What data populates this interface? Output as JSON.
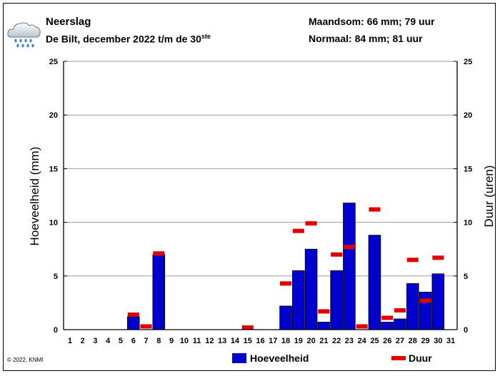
{
  "header": {
    "title": "Neerslag",
    "subtitle_main": "De Bilt, december 2022 t/m de 30",
    "subtitle_sup": "ste",
    "monthly_total": "Maandsom: 66 mm; 79 uur",
    "normal": "Normaal: 84 mm; 81 uur",
    "icon": "rain-cloud-icon"
  },
  "copyright": "© 2022, KNMI",
  "chart_data": {
    "type": "bar",
    "categories": [
      "1",
      "2",
      "3",
      "4",
      "5",
      "6",
      "7",
      "8",
      "9",
      "10",
      "11",
      "12",
      "13",
      "14",
      "15",
      "16",
      "17",
      "18",
      "19",
      "20",
      "21",
      "22",
      "23",
      "24",
      "25",
      "26",
      "27",
      "28",
      "29",
      "30",
      "31"
    ],
    "ylabel": "Hoeveelheid (mm)",
    "y2label": "Duur (uren)",
    "ylim": [
      0,
      25
    ],
    "y2lim": [
      0,
      25
    ],
    "yticks": [
      "0",
      "5",
      "10",
      "15",
      "20",
      "25"
    ],
    "grid": true,
    "legend_position": "bottom",
    "series": [
      {
        "name": "Hoeveelheid",
        "kind": "bar",
        "color": "#0000cc",
        "values": [
          0,
          0,
          0,
          0,
          0,
          1.2,
          0,
          7.0,
          0,
          0,
          0,
          0,
          0,
          0,
          0,
          0,
          0,
          2.2,
          5.5,
          7.5,
          0.7,
          5.5,
          11.8,
          0,
          8.8,
          0.7,
          1.0,
          4.3,
          3.5,
          5.2,
          null
        ]
      },
      {
        "name": "Duur",
        "kind": "marker",
        "color": "#e00000",
        "values": [
          0,
          0,
          0,
          0,
          0,
          1.4,
          0.3,
          7.1,
          0,
          0,
          0,
          0,
          0,
          0,
          0.2,
          0,
          0,
          4.3,
          9.2,
          9.9,
          1.7,
          7.0,
          7.7,
          0.3,
          11.2,
          1.1,
          1.8,
          6.5,
          2.7,
          6.7,
          null
        ]
      }
    ]
  }
}
